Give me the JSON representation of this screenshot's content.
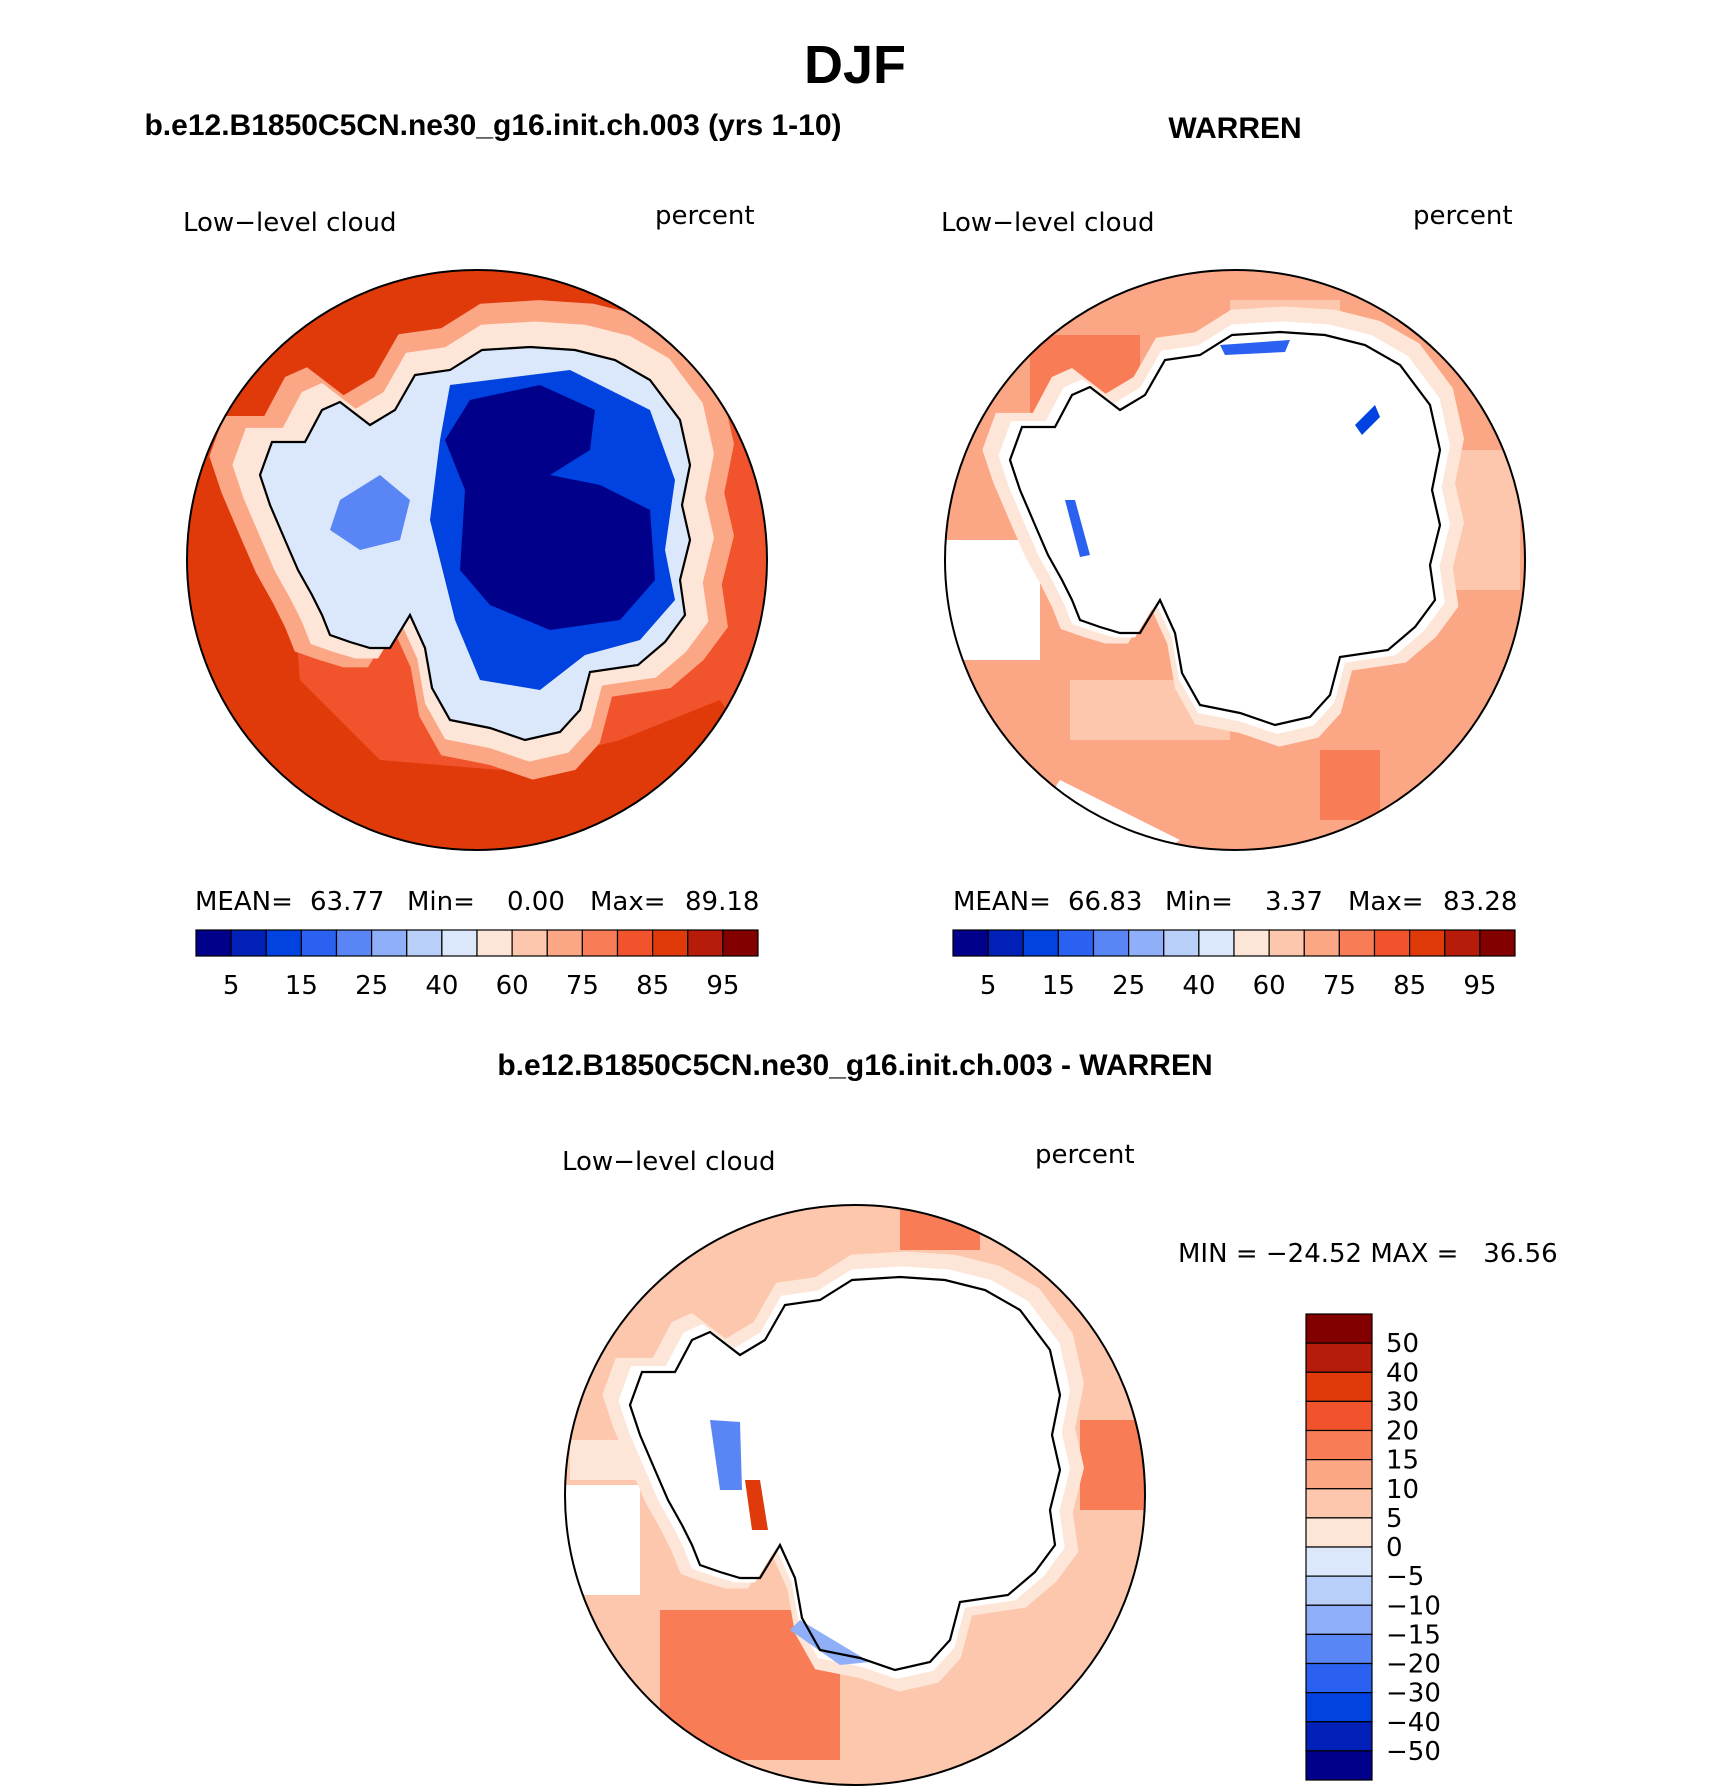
{
  "figure": {
    "title": "DJF",
    "panel_a_title": "b.e12.B1850C5CN.ne30_g16.init.ch.003 (yrs 1-10)",
    "panel_b_title": "WARREN",
    "panel_c_title": "b.e12.B1850C5CN.ne30_g16.init.ch.003 - WARREN"
  },
  "chart_data": [
    {
      "type": "heatmap",
      "projection": "south polar stereographic",
      "left_string": "Low−level cloud",
      "right_string": "percent",
      "stats": {
        "mean_label": "MEAN=",
        "mean": "63.77",
        "min_label": "Min=",
        "min": "0.00",
        "max_label": "Max=",
        "max": "89.18"
      },
      "colorbar": {
        "orientation": "horizontal",
        "tick_labels": [
          "5",
          "15",
          "25",
          "40",
          "60",
          "75",
          "85",
          "95"
        ],
        "colors": [
          "#00008b",
          "#0020b8",
          "#0043e0",
          "#2a61f0",
          "#5a86f5",
          "#8fb0f8",
          "#b8cff9",
          "#dbe8fb",
          "#fde6d7",
          "#fcc7ac",
          "#fba684",
          "#f87d56",
          "#f1532d",
          "#e03a0b",
          "#b71c0a",
          "#830000"
        ]
      },
      "field": {
        "ocean": "#f1532d",
        "ocean_outer": "#e03a0b",
        "coast_band": [
          "#fba684",
          "#fde6d7",
          "#dbe8fb"
        ],
        "plateau": "#00008b",
        "east_interior": "#0043e0"
      }
    },
    {
      "type": "heatmap",
      "projection": "south polar stereographic",
      "left_string": "Low−level cloud",
      "right_string": "percent",
      "stats": {
        "mean_label": "MEAN=",
        "mean": "66.83",
        "min_label": "Min=",
        "min": "3.37",
        "max_label": "Max=",
        "max": "83.28"
      },
      "colorbar": {
        "orientation": "horizontal",
        "tick_labels": [
          "5",
          "15",
          "25",
          "40",
          "60",
          "75",
          "85",
          "95"
        ],
        "colors": [
          "#00008b",
          "#0020b8",
          "#0043e0",
          "#2a61f0",
          "#5a86f5",
          "#8fb0f8",
          "#b8cff9",
          "#dbe8fb",
          "#fde6d7",
          "#fcc7ac",
          "#fba684",
          "#f87d56",
          "#f1532d",
          "#e03a0b",
          "#b71c0a",
          "#830000"
        ]
      },
      "field": {
        "ocean": "#fba684",
        "ocean_patch": "#f87d56",
        "continent": "missing"
      }
    },
    {
      "type": "heatmap",
      "projection": "south polar stereographic",
      "left_string": "Low−level cloud",
      "right_string": "percent",
      "stats_text": "MIN = −24.52 MAX =   36.56",
      "colorbar": {
        "orientation": "vertical",
        "tick_labels": [
          "50",
          "40",
          "30",
          "20",
          "15",
          "10",
          "5",
          "0",
          "−5",
          "−10",
          "−15",
          "−20",
          "−30",
          "−40",
          "−50"
        ],
        "colors_top_to_bottom": [
          "#830000",
          "#b71c0a",
          "#e03a0b",
          "#f1532d",
          "#f87d56",
          "#fba684",
          "#fcc7ac",
          "#fde6d7",
          "#dbe8fb",
          "#b8cff9",
          "#8fb0f8",
          "#5a86f5",
          "#2a61f0",
          "#0043e0",
          "#0020b8",
          "#00008b"
        ]
      },
      "field": {
        "ocean": "#fcc7ac",
        "ocean_patch": "#f87d56",
        "continent": "missing"
      }
    }
  ]
}
